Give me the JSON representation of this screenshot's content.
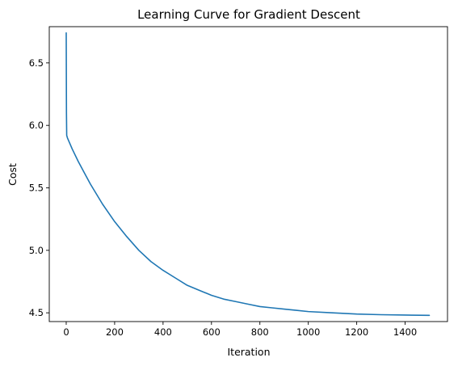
{
  "chart_data": {
    "type": "line",
    "title": "Learning Curve for Gradient Descent",
    "xlabel": "Iteration",
    "ylabel": "Cost",
    "xlim": [
      -70,
      1575
    ],
    "ylim": [
      4.43,
      6.79
    ],
    "xticks": [
      0,
      200,
      400,
      600,
      800,
      1000,
      1200,
      1400
    ],
    "xtick_labels": [
      "0",
      "200",
      "400",
      "600",
      "800",
      "1000",
      "1200",
      "1400"
    ],
    "yticks": [
      4.5,
      5.0,
      5.5,
      6.0,
      6.5
    ],
    "ytick_labels": [
      "4.5",
      "5.0",
      "5.5",
      "6.0",
      "6.5"
    ],
    "grid": false,
    "legend": false,
    "series": [
      {
        "color": "#1f77b4",
        "x": [
          0,
          1,
          2,
          5,
          25,
          50,
          75,
          100,
          150,
          200,
          250,
          300,
          350,
          400,
          450,
          500,
          550,
          600,
          650,
          700,
          750,
          800,
          850,
          900,
          950,
          1000,
          1100,
          1200,
          1300,
          1400,
          1500
        ],
        "y": [
          6.74,
          6.1,
          5.92,
          5.9,
          5.81,
          5.71,
          5.62,
          5.53,
          5.37,
          5.23,
          5.11,
          5.0,
          4.91,
          4.84,
          4.78,
          4.72,
          4.68,
          4.64,
          4.61,
          4.59,
          4.57,
          4.55,
          4.54,
          4.53,
          4.52,
          4.51,
          4.5,
          4.49,
          4.485,
          4.482,
          4.48
        ]
      }
    ]
  }
}
